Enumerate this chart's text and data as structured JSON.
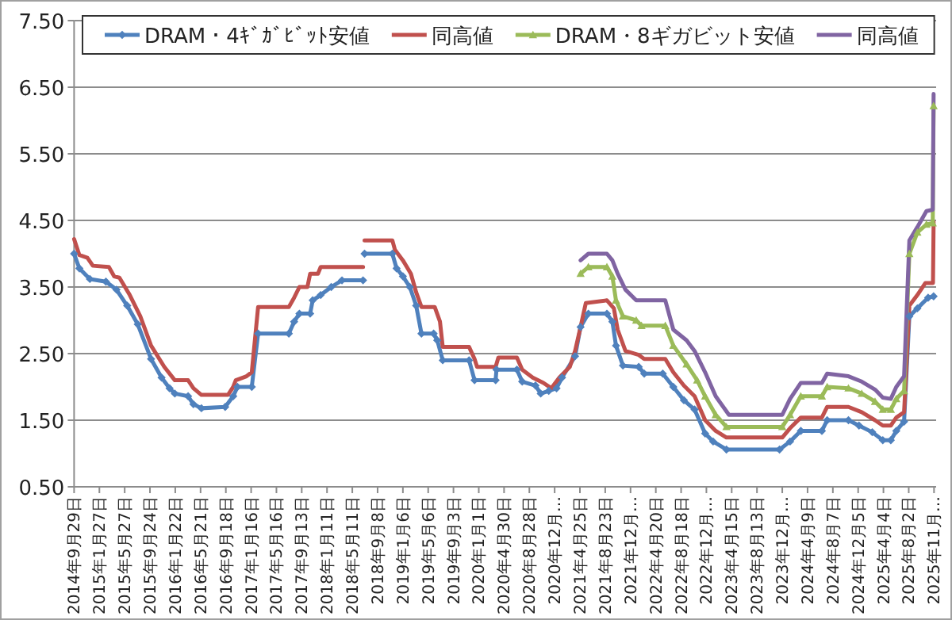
{
  "chart_data": {
    "type": "line",
    "grid": "y",
    "legend": "top",
    "xlim": [
      "2014-09-29",
      "2025-12-10"
    ],
    "xticks": [
      {
        "value": "2014-09-29",
        "label": "2014年9月29日"
      },
      {
        "value": "2015-01-27",
        "label": "2015年1月27日"
      },
      {
        "value": "2015-05-27",
        "label": "2015年5月27日"
      },
      {
        "value": "2015-09-24",
        "label": "2015年9月24日"
      },
      {
        "value": "2016-01-22",
        "label": "2016年1月22日"
      },
      {
        "value": "2016-05-21",
        "label": "2016年5月21日"
      },
      {
        "value": "2016-09-18",
        "label": "2016年9月18日"
      },
      {
        "value": "2017-01-16",
        "label": "2017年1月16日"
      },
      {
        "value": "2017-05-16",
        "label": "2017年5月16日"
      },
      {
        "value": "2017-09-13",
        "label": "2017年9月13日"
      },
      {
        "value": "2018-01-11",
        "label": "2018年1月11日"
      },
      {
        "value": "2018-05-11",
        "label": "2018年5月11日"
      },
      {
        "value": "2018-09-08",
        "label": "2018年9月8日"
      },
      {
        "value": "2019-01-06",
        "label": "2019年1月6日"
      },
      {
        "value": "2019-05-06",
        "label": "2019年5月6日"
      },
      {
        "value": "2019-09-03",
        "label": "2019年9月3日"
      },
      {
        "value": "2020-01-01",
        "label": "2020年1月1日"
      },
      {
        "value": "2020-04-30",
        "label": "2020年4月30日"
      },
      {
        "value": "2020-08-28",
        "label": "2020年8月28日"
      },
      {
        "value": "2020-12-26",
        "label": "2020年12月…"
      },
      {
        "value": "2021-04-25",
        "label": "2021年4月25日"
      },
      {
        "value": "2021-08-23",
        "label": "2021年8月23日"
      },
      {
        "value": "2021-12-21",
        "label": "2021年12月…"
      },
      {
        "value": "2022-04-20",
        "label": "2022年4月20日"
      },
      {
        "value": "2022-08-18",
        "label": "2022年8月18日"
      },
      {
        "value": "2022-12-16",
        "label": "2022年12月…"
      },
      {
        "value": "2023-04-15",
        "label": "2023年4月15日"
      },
      {
        "value": "2023-08-13",
        "label": "2023年8月13日"
      },
      {
        "value": "2023-12-11",
        "label": "2023年12月…"
      },
      {
        "value": "2024-04-09",
        "label": "2024年4月9日"
      },
      {
        "value": "2024-08-07",
        "label": "2024年8月7日"
      },
      {
        "value": "2024-12-05",
        "label": "2024年12月5日"
      },
      {
        "value": "2025-04-04",
        "label": "2025年4月4日"
      },
      {
        "value": "2025-08-02",
        "label": "2025年8月2日"
      },
      {
        "value": "2025-11-30",
        "label": "2025年11月…"
      }
    ],
    "ylim": [
      0.5,
      7.5
    ],
    "yticks": [
      {
        "value": 0.5,
        "label": "0.50"
      },
      {
        "value": 1.5,
        "label": "1.50"
      },
      {
        "value": 2.5,
        "label": "2.50"
      },
      {
        "value": 3.5,
        "label": "3.50"
      },
      {
        "value": 4.5,
        "label": "4.50"
      },
      {
        "value": 5.5,
        "label": "5.50"
      },
      {
        "value": 6.5,
        "label": "6.50"
      },
      {
        "value": 7.5,
        "label": "7.50"
      }
    ],
    "series": [
      {
        "name": "DRAM・4ｷﾞｶﾞﾋﾞｯﾄ安値",
        "color": "#4f81bd",
        "marker": "diamond",
        "x": [
          "2014-09-29",
          "2014-10-24",
          "2014-12-13",
          "2015-02-27",
          "2015-04-18",
          "2015-06-08",
          "2015-07-28",
          "2015-09-29",
          "2015-11-18",
          "2015-12-26",
          "2016-01-20",
          "2016-03-23",
          "2016-04-17",
          "2016-05-25",
          "2016-09-15",
          "2016-10-23",
          "2016-11-12",
          "2017-01-19",
          "2017-02-18",
          "2017-07-14",
          "2017-08-08",
          "2017-09-02",
          "2017-10-23",
          "2017-11-04",
          "2017-12-12",
          "2018-01-31",
          "2018-03-23",
          "2018-07-01",
          "2018-07-04",
          "2018-07-08",
          "2018-11-17",
          "2018-12-07",
          "2019-01-06",
          "2019-02-08",
          "2019-03-10",
          "2019-04-04",
          "2019-06-01",
          "2019-06-18",
          "2019-07-14",
          "2019-11-16",
          "2019-12-12",
          "2020-03-21",
          "2020-03-25",
          "2020-06-30",
          "2020-07-25",
          "2020-09-26",
          "2020-10-21",
          "2020-11-28",
          "2021-01-04",
          "2021-01-30",
          "2021-04-02",
          "2021-04-28",
          "2021-06-04",
          "2021-08-31",
          "2021-09-26",
          "2021-10-13",
          "2021-11-15",
          "2022-01-29",
          "2022-02-24",
          "2022-05-23",
          "2022-07-12",
          "2022-08-31",
          "2022-10-21",
          "2022-12-10",
          "2023-01-17",
          "2023-03-21",
          "2023-11-28",
          "2024-01-17",
          "2024-03-08",
          "2024-06-16",
          "2024-07-11",
          "2024-10-20",
          "2024-12-09",
          "2025-02-10",
          "2025-04-01",
          "2025-05-09",
          "2025-06-04",
          "2025-07-11",
          "2025-08-05",
          "2025-09-12",
          "2025-11-02",
          "2025-11-28"
        ],
        "values": [
          4.0,
          3.78,
          3.62,
          3.58,
          3.46,
          3.22,
          2.94,
          2.42,
          2.14,
          1.98,
          1.9,
          1.86,
          1.74,
          1.68,
          1.7,
          1.86,
          2.0,
          2.0,
          2.8,
          2.8,
          2.98,
          3.1,
          3.1,
          3.3,
          3.38,
          3.5,
          3.6,
          3.6,
          null,
          4.0,
          4.0,
          3.78,
          3.66,
          3.5,
          3.22,
          2.8,
          2.8,
          2.7,
          2.4,
          2.4,
          2.1,
          2.1,
          2.26,
          2.26,
          2.08,
          2.02,
          1.9,
          1.94,
          1.98,
          2.14,
          2.46,
          2.9,
          3.1,
          3.1,
          2.98,
          2.62,
          2.32,
          2.3,
          2.2,
          2.2,
          2.0,
          1.8,
          1.66,
          1.3,
          1.18,
          1.06,
          1.06,
          1.18,
          1.34,
          1.34,
          1.5,
          1.5,
          1.42,
          1.32,
          1.2,
          1.2,
          1.34,
          1.48,
          3.06,
          3.18,
          3.34,
          3.36
        ]
      },
      {
        "name": "同高値",
        "color": "#c0504d",
        "marker": "none",
        "x": [
          "2014-09-29",
          "2014-10-24",
          "2014-12-01",
          "2014-12-27",
          "2015-03-13",
          "2015-04-07",
          "2015-05-02",
          "2015-06-20",
          "2015-08-09",
          "2015-09-29",
          "2015-12-01",
          "2016-01-20",
          "2016-03-23",
          "2016-04-17",
          "2016-05-25",
          "2016-09-28",
          "2016-10-23",
          "2016-11-04",
          "2016-12-25",
          "2017-01-19",
          "2017-02-18",
          "2017-07-14",
          "2017-08-08",
          "2017-09-02",
          "2017-10-10",
          "2017-10-23",
          "2017-11-29",
          "2017-12-12",
          "2018-07-01",
          "2018-07-04",
          "2018-07-08",
          "2018-11-17",
          "2018-11-29",
          "2019-01-06",
          "2019-02-13",
          "2019-03-10",
          "2019-04-04",
          "2019-06-06",
          "2019-07-01",
          "2019-07-14",
          "2019-11-16",
          "2019-12-12",
          "2019-12-24",
          "2020-03-21",
          "2020-04-03",
          "2020-06-30",
          "2020-07-25",
          "2020-09-13",
          "2020-11-03",
          "2020-12-10",
          "2021-01-17",
          "2021-03-08",
          "2021-04-02",
          "2021-04-28",
          "2021-05-23",
          "2021-08-31",
          "2021-10-03",
          "2021-10-21",
          "2021-11-27",
          "2022-01-29",
          "2022-02-24",
          "2022-06-04",
          "2022-07-12",
          "2022-08-31",
          "2022-10-21",
          "2022-12-10",
          "2023-01-29",
          "2023-03-21",
          "2023-12-11",
          "2024-01-17",
          "2024-03-08",
          "2024-06-16",
          "2024-07-11",
          "2024-10-20",
          "2024-12-22",
          "2025-02-23",
          "2025-04-01",
          "2025-05-09",
          "2025-06-04",
          "2025-07-11",
          "2025-08-05",
          "2025-09-12",
          "2025-10-20",
          "2025-11-25",
          "2025-11-28"
        ],
        "values": [
          4.22,
          3.98,
          3.94,
          3.82,
          3.8,
          3.66,
          3.64,
          3.38,
          3.06,
          2.62,
          2.3,
          2.1,
          2.1,
          1.98,
          1.88,
          1.88,
          2.0,
          2.1,
          2.16,
          2.22,
          3.2,
          3.2,
          3.34,
          3.5,
          3.5,
          3.7,
          3.7,
          3.8,
          3.8,
          null,
          4.2,
          4.2,
          4.06,
          3.9,
          3.7,
          3.42,
          3.2,
          3.2,
          2.98,
          2.6,
          2.6,
          2.42,
          2.3,
          2.3,
          2.44,
          2.44,
          2.26,
          2.14,
          2.06,
          1.98,
          2.14,
          2.3,
          2.54,
          2.9,
          3.26,
          3.3,
          3.18,
          2.86,
          2.54,
          2.48,
          2.42,
          2.42,
          2.22,
          2.02,
          1.86,
          1.5,
          1.34,
          1.24,
          1.24,
          1.38,
          1.54,
          1.54,
          1.7,
          1.7,
          1.62,
          1.5,
          1.42,
          1.42,
          1.54,
          1.62,
          3.22,
          3.38,
          3.56,
          3.56,
          4.48
        ]
      },
      {
        "name": "DRAM・8ギガビット安値",
        "color": "#9bbb59",
        "marker": "triangle",
        "x": [
          "2021-04-28",
          "2021-06-04",
          "2021-08-31",
          "2021-09-26",
          "2021-10-13",
          "2021-11-15",
          "2022-01-17",
          "2022-02-11",
          "2022-06-04",
          "2022-07-12",
          "2022-09-13",
          "2022-11-02",
          "2022-12-10",
          "2023-01-29",
          "2023-03-21",
          "2023-12-11",
          "2024-01-17",
          "2024-03-08",
          "2024-06-16",
          "2024-07-11",
          "2024-10-20",
          "2024-12-22",
          "2025-02-23",
          "2025-04-01",
          "2025-05-09",
          "2025-06-04",
          "2025-07-11",
          "2025-08-05",
          "2025-09-12",
          "2025-10-25",
          "2025-11-24",
          "2025-11-28"
        ],
        "values": [
          3.7,
          3.8,
          3.8,
          3.66,
          3.3,
          3.06,
          3.0,
          2.92,
          2.92,
          2.62,
          2.34,
          2.1,
          1.86,
          1.58,
          1.4,
          1.4,
          1.58,
          1.86,
          1.86,
          2.0,
          1.98,
          1.9,
          1.78,
          1.66,
          1.66,
          1.82,
          1.94,
          4.0,
          4.32,
          4.44,
          4.46,
          6.22
        ]
      },
      {
        "name": "同高値",
        "color": "#8064a2",
        "marker": "none",
        "x": [
          "2021-04-28",
          "2021-06-04",
          "2021-08-31",
          "2021-09-26",
          "2021-10-21",
          "2021-11-27",
          "2022-01-17",
          "2022-06-04",
          "2022-07-12",
          "2022-09-13",
          "2022-10-21",
          "2022-12-10",
          "2023-01-29",
          "2023-04-02",
          "2023-12-11",
          "2024-01-17",
          "2024-03-08",
          "2024-06-16",
          "2024-07-11",
          "2024-10-20",
          "2024-12-22",
          "2025-02-23",
          "2025-04-01",
          "2025-05-09",
          "2025-06-04",
          "2025-07-11",
          "2025-08-05",
          "2025-09-12",
          "2025-10-25",
          "2025-11-24",
          "2025-11-28"
        ],
        "values": [
          3.9,
          4.0,
          4.0,
          3.9,
          3.7,
          3.46,
          3.3,
          3.3,
          2.86,
          2.7,
          2.54,
          2.22,
          1.86,
          1.58,
          1.58,
          1.82,
          2.06,
          2.06,
          2.2,
          2.16,
          2.08,
          1.96,
          1.84,
          1.82,
          2.0,
          2.16,
          4.2,
          4.4,
          4.64,
          4.66,
          6.4
        ]
      }
    ]
  }
}
